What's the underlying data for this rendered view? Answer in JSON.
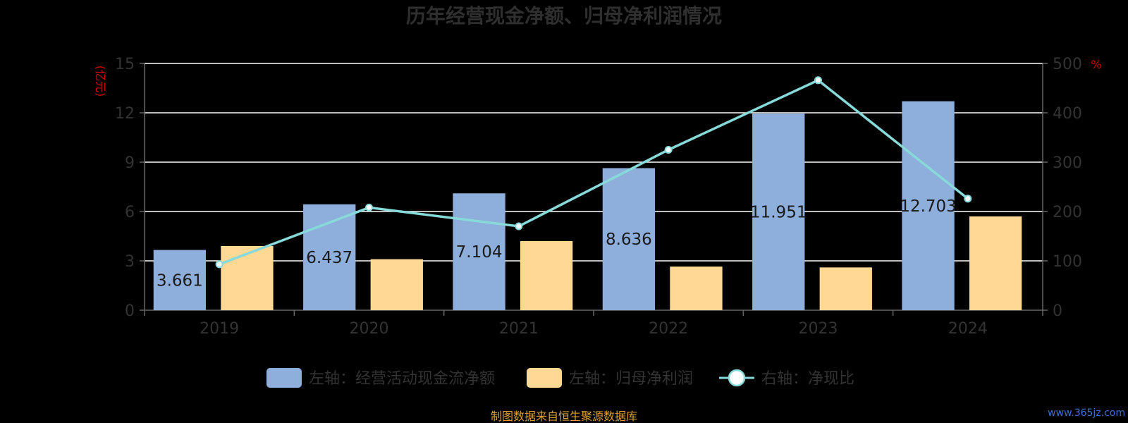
{
  "colors": {
    "background": "#000000",
    "bar_series_1": "#8eaedb",
    "bar_series_2": "#ffd894",
    "line_series": "#88dada",
    "grid": "#ffffff",
    "axis": "#666666",
    "unit_text": "#d00000",
    "source_text": "#d8a032",
    "watermark": "#3f6fd0"
  },
  "left_axis_unit": "(亿元)",
  "right_axis_unit": "%",
  "source_note": "制图数据来自恒生聚源数据库",
  "watermark": "www.365jz.com",
  "chart_data": {
    "type": "bar",
    "title": "历年经营现金净额、归母净利润情况",
    "categories": [
      "2019",
      "2020",
      "2021",
      "2022",
      "2023",
      "2024"
    ],
    "series": [
      {
        "name": "左轴：经营活动现金流净额",
        "type": "bar",
        "axis": "left",
        "values": [
          3.661,
          6.437,
          7.104,
          8.636,
          11.951,
          12.703
        ],
        "labels": [
          "3.661",
          "6.437",
          "7.104",
          "8.636",
          "11.951",
          "12.703"
        ]
      },
      {
        "name": "左轴：归母净利润",
        "type": "bar",
        "axis": "left",
        "values": [
          3.9,
          3.1,
          4.2,
          2.65,
          2.6,
          5.7
        ]
      },
      {
        "name": "右轴：净现比",
        "type": "line",
        "axis": "right",
        "values": [
          93,
          208,
          170,
          325,
          466,
          226
        ]
      }
    ],
    "left_axis": {
      "ylim": [
        0,
        15
      ],
      "ticks": [
        "0",
        "3",
        "6",
        "9",
        "12",
        "15"
      ]
    },
    "right_axis": {
      "ylim": [
        0,
        500
      ],
      "ticks": [
        "0",
        "100",
        "200",
        "300",
        "400",
        "500"
      ]
    },
    "grid": true,
    "legend_position": "bottom-center"
  }
}
